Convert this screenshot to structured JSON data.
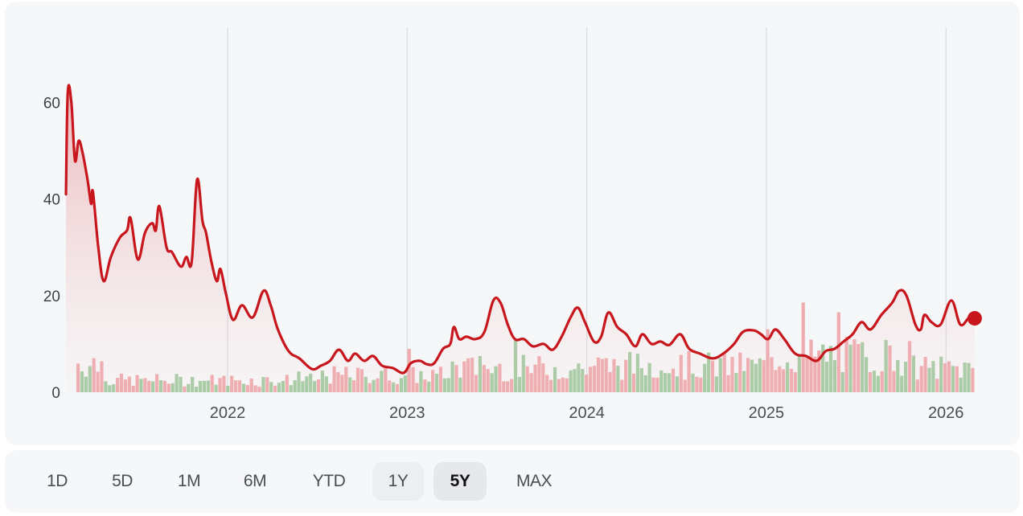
{
  "chart_data": {
    "type": "line",
    "title": "",
    "xlabel": "",
    "ylabel": "",
    "ylim": [
      0,
      70
    ],
    "y_ticks": [
      0,
      20,
      40,
      60
    ],
    "x_ticks": [
      "2022",
      "2023",
      "2024",
      "2025",
      "2026"
    ],
    "grid": "vertical lines at year ticks",
    "legend": "none",
    "series": [
      {
        "name": "Price",
        "color": "#c8161d",
        "points": [
          [
            2021.1,
            41
          ],
          [
            2021.11,
            62
          ],
          [
            2021.13,
            60
          ],
          [
            2021.15,
            48
          ],
          [
            2021.17,
            52
          ],
          [
            2021.19,
            50
          ],
          [
            2021.22,
            44
          ],
          [
            2021.24,
            39
          ],
          [
            2021.25,
            41.5
          ],
          [
            2021.28,
            30
          ],
          [
            2021.31,
            23
          ],
          [
            2021.35,
            28
          ],
          [
            2021.4,
            32
          ],
          [
            2021.44,
            33.5
          ],
          [
            2021.46,
            36
          ],
          [
            2021.5,
            27.5
          ],
          [
            2021.54,
            33
          ],
          [
            2021.58,
            35
          ],
          [
            2021.6,
            33.5
          ],
          [
            2021.62,
            38.5
          ],
          [
            2021.66,
            30
          ],
          [
            2021.69,
            29
          ],
          [
            2021.74,
            26
          ],
          [
            2021.77,
            28
          ],
          [
            2021.8,
            27
          ],
          [
            2021.83,
            44
          ],
          [
            2021.86,
            35.5
          ],
          [
            2021.88,
            33
          ],
          [
            2021.91,
            27
          ],
          [
            2021.94,
            23
          ],
          [
            2021.96,
            25.5
          ],
          [
            2021.99,
            20.5
          ],
          [
            2022.03,
            15
          ],
          [
            2022.08,
            18
          ],
          [
            2022.14,
            15.5
          ],
          [
            2022.2,
            21
          ],
          [
            2022.24,
            18
          ],
          [
            2022.28,
            13
          ],
          [
            2022.34,
            8.5
          ],
          [
            2022.4,
            7
          ],
          [
            2022.47,
            4.8
          ],
          [
            2022.52,
            5.5
          ],
          [
            2022.57,
            6.5
          ],
          [
            2022.62,
            8.8
          ],
          [
            2022.67,
            6.5
          ],
          [
            2022.71,
            8
          ],
          [
            2022.76,
            6.5
          ],
          [
            2022.81,
            7.5
          ],
          [
            2022.86,
            5.5
          ],
          [
            2022.92,
            5
          ],
          [
            2022.98,
            4
          ],
          [
            2023.02,
            6
          ],
          [
            2023.07,
            6.5
          ],
          [
            2023.11,
            5.8
          ],
          [
            2023.15,
            6
          ],
          [
            2023.2,
            9
          ],
          [
            2023.24,
            10
          ],
          [
            2023.26,
            13.5
          ],
          [
            2023.29,
            11
          ],
          [
            2023.33,
            11.5
          ],
          [
            2023.38,
            11
          ],
          [
            2023.43,
            12.5
          ],
          [
            2023.48,
            19
          ],
          [
            2023.52,
            18.5
          ],
          [
            2023.56,
            14
          ],
          [
            2023.6,
            11
          ],
          [
            2023.65,
            11
          ],
          [
            2023.7,
            9.5
          ],
          [
            2023.76,
            10
          ],
          [
            2023.81,
            8.8
          ],
          [
            2023.86,
            11.5
          ],
          [
            2023.91,
            15.5
          ],
          [
            2023.95,
            17.5
          ],
          [
            2023.99,
            14.5
          ],
          [
            2024.04,
            10.5
          ],
          [
            2024.08,
            11.5
          ],
          [
            2024.12,
            16.5
          ],
          [
            2024.17,
            13.5
          ],
          [
            2024.22,
            12
          ],
          [
            2024.27,
            9.5
          ],
          [
            2024.31,
            12
          ],
          [
            2024.36,
            10
          ],
          [
            2024.41,
            10.5
          ],
          [
            2024.46,
            9.8
          ],
          [
            2024.52,
            12
          ],
          [
            2024.57,
            9
          ],
          [
            2024.63,
            8
          ],
          [
            2024.7,
            7
          ],
          [
            2024.76,
            8
          ],
          [
            2024.82,
            10
          ],
          [
            2024.87,
            12.5
          ],
          [
            2024.93,
            12.8
          ],
          [
            2024.97,
            12
          ],
          [
            2025.01,
            11
          ],
          [
            2025.05,
            13
          ],
          [
            2025.1,
            11
          ],
          [
            2025.16,
            8
          ],
          [
            2025.22,
            7.5
          ],
          [
            2025.28,
            6.5
          ],
          [
            2025.33,
            8.5
          ],
          [
            2025.38,
            9
          ],
          [
            2025.43,
            10.5
          ],
          [
            2025.48,
            12
          ],
          [
            2025.53,
            14.5
          ],
          [
            2025.58,
            13
          ],
          [
            2025.64,
            16
          ],
          [
            2025.7,
            18.5
          ],
          [
            2025.74,
            21
          ],
          [
            2025.78,
            20
          ],
          [
            2025.83,
            14
          ],
          [
            2025.86,
            13
          ],
          [
            2025.88,
            16
          ],
          [
            2025.92,
            14.5
          ],
          [
            2025.97,
            14
          ],
          [
            2026.03,
            19
          ],
          [
            2026.08,
            14
          ],
          [
            2026.13,
            15.5
          ],
          [
            2026.16,
            15.3
          ]
        ]
      }
    ],
    "volume": {
      "note": "Volume bars along the bottom, green for up periods and pink for down; relative heights roughly 0-17 in price-axis units",
      "colors": {
        "up": "#9cc79a",
        "down": "#eea3a6"
      }
    },
    "current_point_marker": {
      "x": 2026.16,
      "y": 15.3,
      "color": "#c8161d"
    }
  },
  "range_selector": {
    "buttons": [
      {
        "label": "1D"
      },
      {
        "label": "5D"
      },
      {
        "label": "1M"
      },
      {
        "label": "6M"
      },
      {
        "label": "YTD"
      },
      {
        "label": "1Y"
      },
      {
        "label": "5Y"
      },
      {
        "label": "MAX"
      }
    ],
    "active": "5Y",
    "hovered": "1Y"
  }
}
